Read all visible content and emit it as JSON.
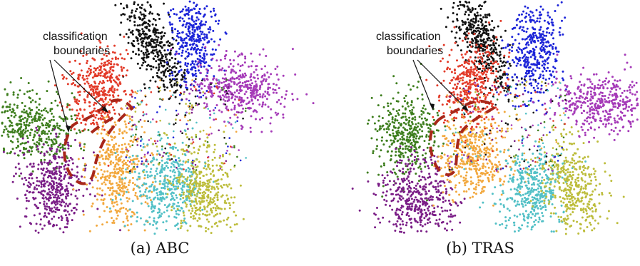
{
  "chart_data": [
    {
      "type": "scatter",
      "caption": "(a) ABC",
      "annotation": [
        "classification",
        "boundaries"
      ],
      "colors": {
        "black": "#111111",
        "blue": "#1c24d8",
        "red": "#e23a28",
        "purple_magenta": "#a53ab8",
        "green": "#3e7e1e",
        "dark_purple": "#7a1d86",
        "orange": "#f2a83e",
        "cyan": "#52c0c6",
        "olive": "#bdbd3c",
        "boundary": "#a8271a"
      }
    },
    {
      "type": "scatter",
      "caption": "(b) TRAS",
      "annotation": [
        "classification",
        "boundaries"
      ],
      "colors": {
        "black": "#111111",
        "blue": "#1c24d8",
        "red": "#e23a28",
        "purple_magenta": "#a53ab8",
        "green": "#3e7e1e",
        "dark_purple": "#7a1d86",
        "orange": "#f2a83e",
        "cyan": "#52c0c6",
        "olive": "#bdbd3c",
        "boundary": "#a8271a"
      }
    }
  ]
}
